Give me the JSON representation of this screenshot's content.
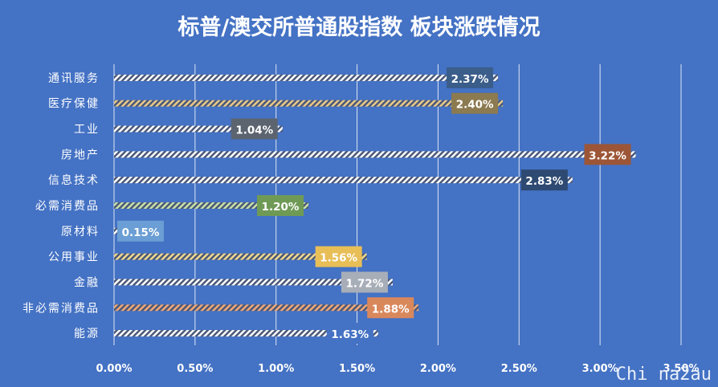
{
  "chart_data": {
    "type": "bar",
    "orientation": "horizontal",
    "title": "标普/澳交所普通股指数 板块涨跌情况",
    "categories": [
      "通讯服务",
      "医疗保健",
      "工业",
      "房地产",
      "信息技术",
      "必需消费品",
      "原材料",
      "公用事业",
      "金融",
      "非必需消费品",
      "能源"
    ],
    "values": [
      2.37,
      2.4,
      1.04,
      3.22,
      2.83,
      1.2,
      0.15,
      1.56,
      1.72,
      1.88,
      1.63
    ],
    "data_labels": [
      "2.37%",
      "2.40%",
      "1.04%",
      "3.22%",
      "2.83%",
      "1.20%",
      "0.15%",
      "1.56%",
      "1.72%",
      "1.88%",
      "1.63%"
    ],
    "label_colors": [
      "#3a5d8a",
      "#8c7a50",
      "#5c6470",
      "#9c5637",
      "#2e4a72",
      "#6f9a55",
      "#6a9ed4",
      "#e8be57",
      "#a8aeb8",
      "#d9885c",
      "#4472c4"
    ],
    "bar_stripe_colors": [
      "#ffffff",
      "#e8c98a",
      "#ffffff",
      "#ffffff",
      "#ffffff",
      "#c8e0a8",
      "#ffffff",
      "#f0d890",
      "#ffffff",
      "#f0a878",
      "#ffffff"
    ],
    "xlim": [
      0,
      3.5
    ],
    "xticks": [
      "0.00%",
      "0.50%",
      "1.00%",
      "1.50%",
      "2.00%",
      "2.50%",
      "3.00%",
      "3.50%"
    ],
    "grid": true,
    "background": "#4472c4"
  },
  "watermark": "Chi na2au"
}
